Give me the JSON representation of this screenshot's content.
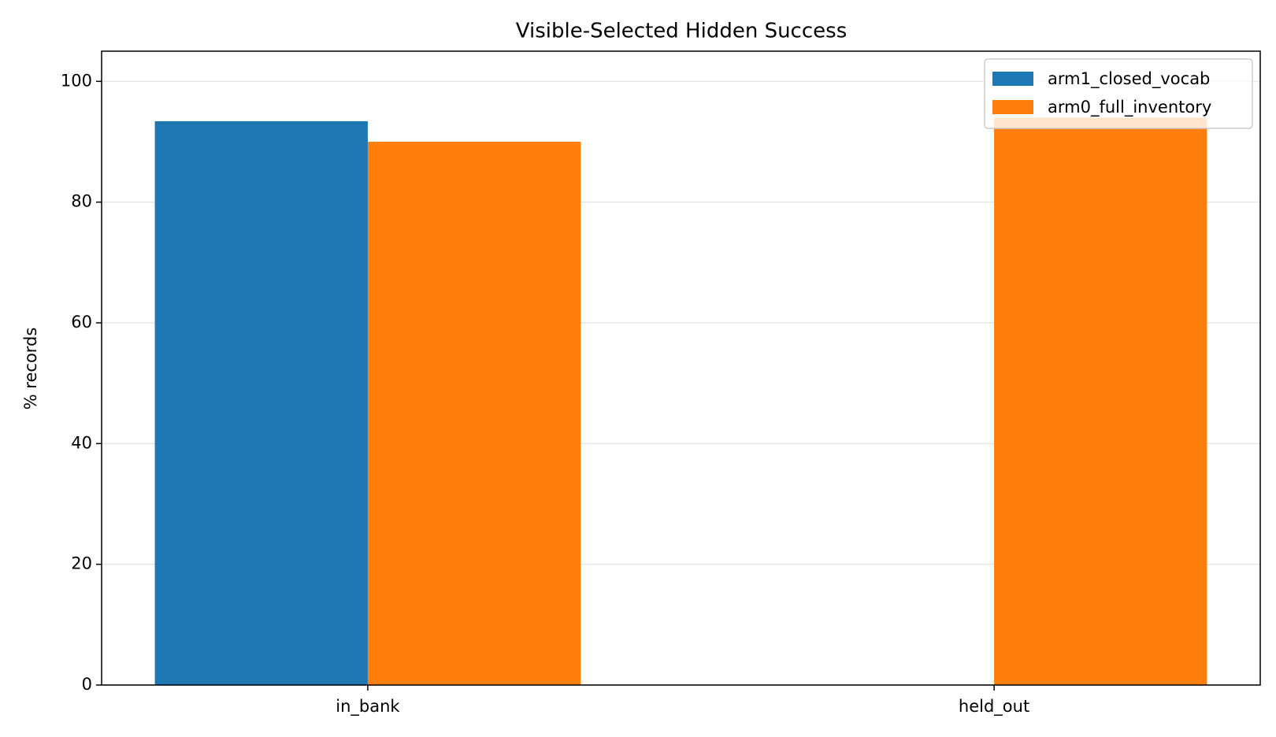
{
  "chart_data": {
    "type": "bar",
    "title": "Visible-Selected Hidden Success",
    "ylabel": "% records",
    "categories": [
      "in_bank",
      "held_out"
    ],
    "series": [
      {
        "name": "arm1_closed_vocab",
        "color": "#1f77b4",
        "values": [
          93.4,
          0
        ]
      },
      {
        "name": "arm0_full_inventory",
        "color": "#ff7f0e",
        "values": [
          90.0,
          94
        ]
      }
    ],
    "ylim": [
      0,
      105
    ],
    "yticks": [
      0,
      20,
      40,
      60,
      80,
      100
    ],
    "grid": true,
    "legend": "upper right"
  }
}
